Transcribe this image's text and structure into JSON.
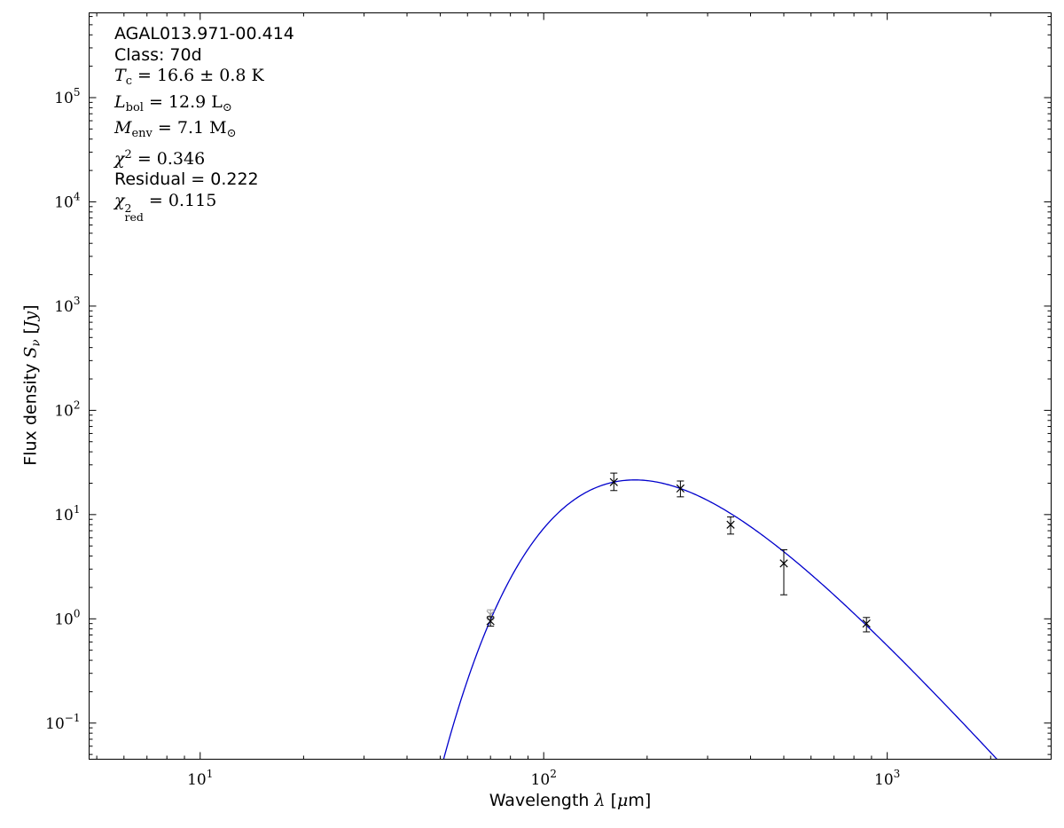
{
  "figure": {
    "background": "#ffffff",
    "annotation": {
      "lines_text": [
        "AGAL013.971-00.414",
        "Class: 70d",
        "Tc = 16.6 ± 0.8 K",
        "Lbol = 12.9 L⊙",
        "Menv = 7.1 M⊙",
        "χ2 = 0.346",
        "Residual = 0.222",
        "χ2red = 0.115"
      ],
      "lines": [
        {
          "parts": [
            {
              "t": "AGAL013.971-00.414",
              "s": "sans"
            }
          ]
        },
        {
          "parts": [
            {
              "t": "Class: 70d",
              "s": "sans"
            }
          ]
        },
        {
          "parts": [
            {
              "t": "T",
              "s": "var"
            },
            {
              "t": "c",
              "s": "sub"
            },
            {
              "t": " = 16.6 ± 0.8 K",
              "s": "rm"
            }
          ]
        },
        {
          "parts": [
            {
              "t": "L",
              "s": "var"
            },
            {
              "t": "bol",
              "s": "sub"
            },
            {
              "t": " = 12.9 L",
              "s": "rm"
            },
            {
              "t": "⊙",
              "s": "sub"
            }
          ]
        },
        {
          "parts": [
            {
              "t": "M",
              "s": "var"
            },
            {
              "t": "env",
              "s": "sub"
            },
            {
              "t": " = 7.1 M",
              "s": "rm"
            },
            {
              "t": "⊙",
              "s": "sub"
            }
          ]
        },
        {
          "parts": [
            {
              "t": "χ",
              "s": "var"
            },
            {
              "t": "2",
              "s": "sup"
            },
            {
              "t": " = 0.346",
              "s": "rm"
            }
          ]
        },
        {
          "parts": [
            {
              "t": "Residual = 0.222",
              "s": "sans"
            }
          ]
        },
        {
          "parts": [
            {
              "t": "χ",
              "s": "var"
            },
            {
              "s": "supsub",
              "sup": "2",
              "sub": "red"
            },
            {
              "t": " = 0.115",
              "s": "rm"
            }
          ]
        }
      ]
    }
  },
  "chart_data": {
    "type": "line+scatter",
    "title": "",
    "xlabel": "Wavelength λ [μm]",
    "ylabel": "Flux density Sν [Jy]",
    "x_scale": "log",
    "y_scale": "log",
    "grid": false,
    "legend": false,
    "xlim": [
      4.75,
      3000
    ],
    "ylim": [
      0.045,
      650000
    ],
    "x_tick_exponents": [
      1,
      2,
      3
    ],
    "y_tick_exponents": [
      -1,
      0,
      1,
      2,
      3,
      4,
      5
    ],
    "axis_color": "#000000",
    "xlabel_parts": [
      {
        "t": "Wavelength ",
        "s": "sans"
      },
      {
        "t": "λ",
        "s": "var"
      },
      {
        "t": " [",
        "s": "sans"
      },
      {
        "t": "μ",
        "s": "var"
      },
      {
        "t": "m]",
        "s": "sans"
      }
    ],
    "ylabel_parts": [
      {
        "t": "Flux density ",
        "s": "sans"
      },
      {
        "t": "S",
        "s": "var"
      },
      {
        "t": "ν",
        "s": "subvar"
      },
      {
        "t": " [",
        "s": "sans"
      },
      {
        "t": "Jy",
        "s": "var"
      },
      {
        "t": "]",
        "s": "sans"
      }
    ],
    "model_curve": {
      "kind": "greybody",
      "T_K": 16.6,
      "beta": 1.75,
      "peak_flux_jy": 21.5,
      "color": "#0000cc"
    },
    "marker": "x",
    "points": [
      {
        "wavelength_um": 70,
        "flux_jy": 1.1,
        "err_minus": 0.12,
        "err_plus": 0.12,
        "color": "#9a9a9a"
      },
      {
        "wavelength_um": 70,
        "flux_jy": 0.95,
        "err_minus": 0.1,
        "err_plus": 0.1,
        "color": "#000000"
      },
      {
        "wavelength_um": 160,
        "flux_jy": 20.5,
        "err_minus": 3.5,
        "err_plus": 4.5,
        "color": "#000000"
      },
      {
        "wavelength_um": 250,
        "flux_jy": 17.8,
        "err_minus": 3.0,
        "err_plus": 3.2,
        "color": "#000000"
      },
      {
        "wavelength_um": 350,
        "flux_jy": 8.0,
        "err_minus": 1.5,
        "err_plus": 1.5,
        "color": "#000000"
      },
      {
        "wavelength_um": 500,
        "flux_jy": 3.4,
        "err_minus": 1.7,
        "err_plus": 1.2,
        "color": "#000000"
      },
      {
        "wavelength_um": 870,
        "flux_jy": 0.9,
        "err_minus": 0.15,
        "err_plus": 0.13,
        "color": "#000000"
      }
    ]
  }
}
